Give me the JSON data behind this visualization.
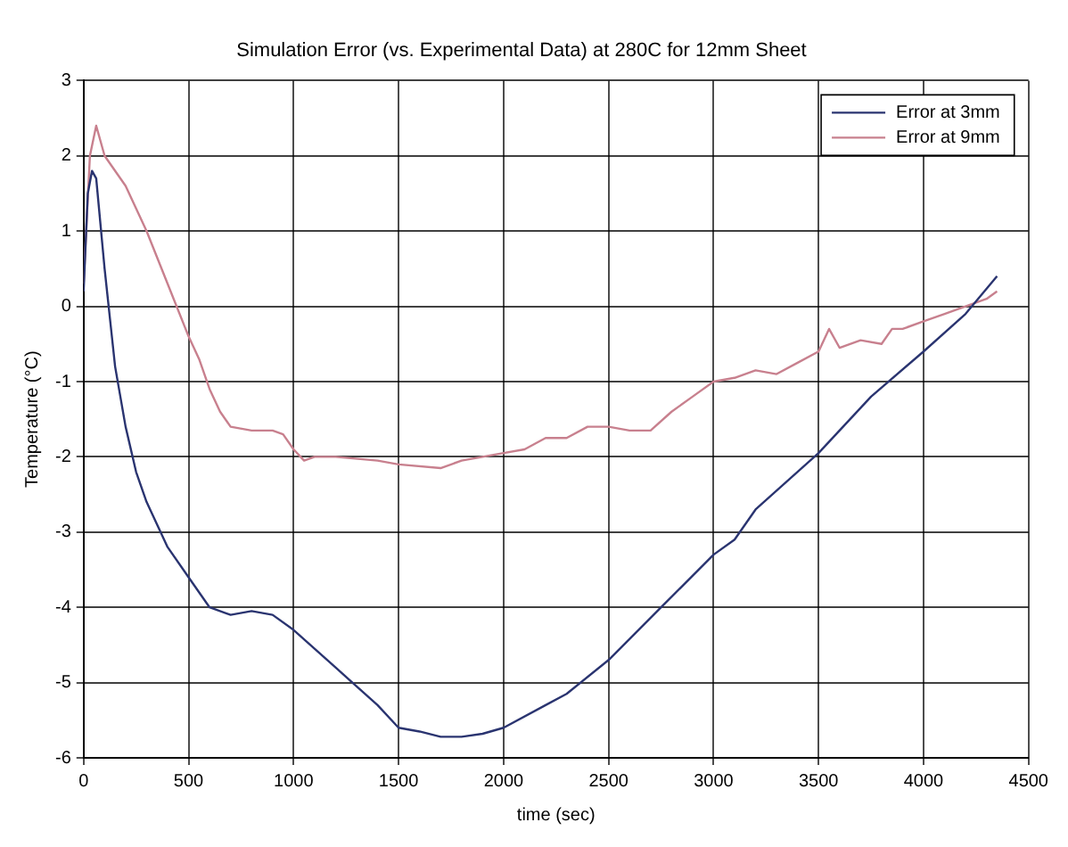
{
  "chart_data": {
    "type": "line",
    "title": "Simulation Error (vs. Experimental Data) at 280C for 12mm Sheet",
    "xlabel": "time (sec)",
    "ylabel": "Temperature (°C)",
    "xlim": [
      0,
      4500
    ],
    "xticks": [
      0,
      500,
      1000,
      1500,
      2000,
      2500,
      3000,
      3500,
      4000,
      4500
    ],
    "ylim": [
      -6,
      3
    ],
    "yticks": [
      -6,
      -5,
      -4,
      -3,
      -2,
      -1,
      0,
      1,
      2,
      3
    ],
    "grid": true,
    "legend": "top right",
    "marker": "none",
    "line_style": "solid",
    "series": [
      {
        "name": "Error at 3mm",
        "color": "#2a3470",
        "x": [
          0,
          20,
          40,
          60,
          100,
          150,
          200,
          250,
          300,
          400,
          500,
          600,
          700,
          800,
          900,
          1000,
          1200,
          1400,
          1500,
          1600,
          1700,
          1800,
          1900,
          2000,
          2200,
          2300,
          2500,
          2750,
          3000,
          3100,
          3200,
          3500,
          3750,
          4000,
          4200,
          4350
        ],
        "values": [
          0.2,
          1.5,
          1.8,
          1.7,
          0.5,
          -0.8,
          -1.6,
          -2.2,
          -2.6,
          -3.2,
          -3.6,
          -4.0,
          -4.1,
          -4.05,
          -4.1,
          -4.3,
          -4.8,
          -5.3,
          -5.6,
          -5.65,
          -5.72,
          -5.72,
          -5.68,
          -5.6,
          -5.3,
          -5.15,
          -4.7,
          -4.0,
          -3.3,
          -3.1,
          -2.7,
          -1.95,
          -1.2,
          -0.6,
          -0.1,
          0.4
        ]
      },
      {
        "name": "Error at 9mm",
        "color": "#c8808e",
        "x": [
          0,
          30,
          60,
          100,
          200,
          300,
          400,
          500,
          550,
          600,
          650,
          700,
          800,
          900,
          950,
          1000,
          1050,
          1100,
          1200,
          1400,
          1500,
          1700,
          1800,
          1900,
          2000,
          2100,
          2200,
          2300,
          2400,
          2500,
          2600,
          2700,
          2800,
          2900,
          3000,
          3100,
          3200,
          3300,
          3400,
          3500,
          3550,
          3600,
          3700,
          3800,
          3850,
          3900,
          4000,
          4100,
          4200,
          4300,
          4350
        ],
        "values": [
          0.3,
          2.0,
          2.4,
          2.0,
          1.6,
          1.0,
          0.3,
          -0.4,
          -0.7,
          -1.1,
          -1.4,
          -1.6,
          -1.65,
          -1.65,
          -1.7,
          -1.9,
          -2.05,
          -2.0,
          -2.0,
          -2.05,
          -2.1,
          -2.15,
          -2.05,
          -2.0,
          -1.95,
          -1.9,
          -1.75,
          -1.75,
          -1.6,
          -1.6,
          -1.65,
          -1.65,
          -1.4,
          -1.2,
          -1.0,
          -0.95,
          -0.85,
          -0.9,
          -0.75,
          -0.6,
          -0.3,
          -0.55,
          -0.45,
          -0.5,
          -0.3,
          -0.3,
          -0.2,
          -0.1,
          0.0,
          0.1,
          0.2
        ]
      }
    ]
  }
}
